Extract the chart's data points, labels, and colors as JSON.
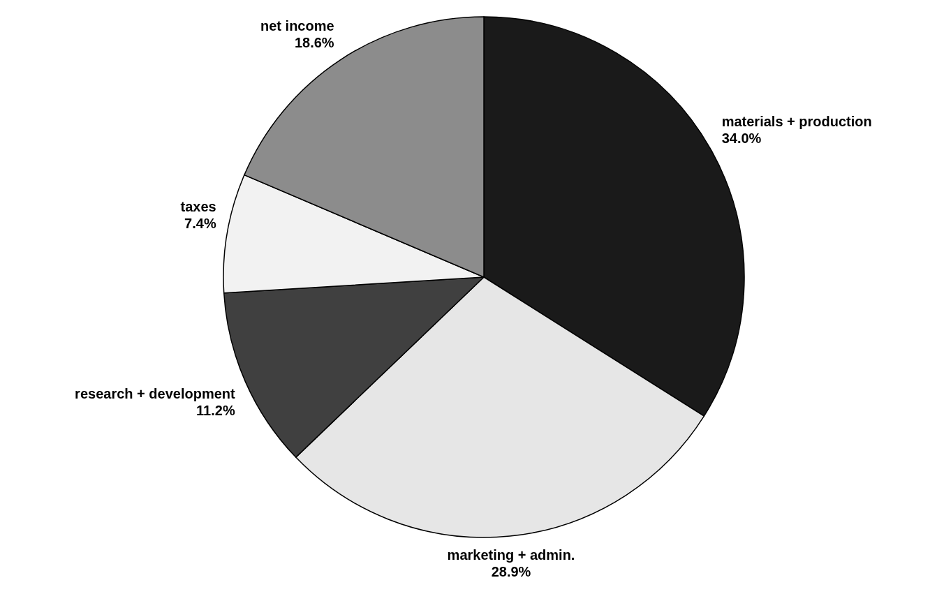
{
  "chart_data": {
    "type": "pie",
    "categories": [
      "materials + production",
      "marketing + admin.",
      "research + development",
      "taxes",
      "net income"
    ],
    "values": [
      34.0,
      28.9,
      11.2,
      7.4,
      18.6
    ],
    "value_labels": [
      "34.0%",
      "28.9%",
      "11.2%",
      "7.4%",
      "18.6%"
    ],
    "colors": [
      "#1a1a1a",
      "#e6e6e6",
      "#404040",
      "#f2f2f2",
      "#8c8c8c"
    ]
  }
}
